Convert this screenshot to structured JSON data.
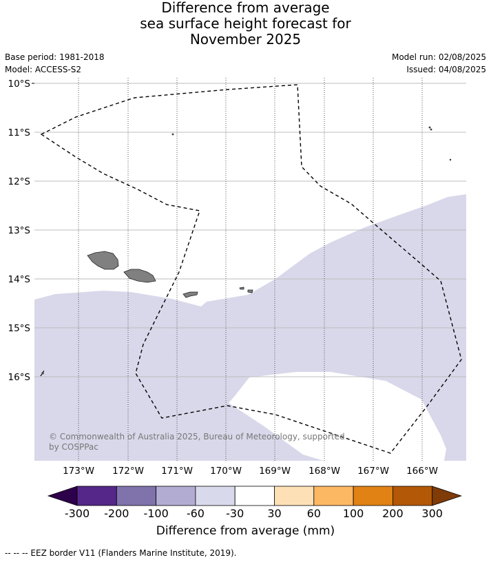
{
  "title": {
    "line1": "Difference from average",
    "line2": "sea surface height forecast for",
    "line3": "November 2025"
  },
  "meta": {
    "base_period": "Base period: 1981-2018",
    "model": "Model: ACCESS-S2",
    "model_run": "Model run: 02/08/2025",
    "issued": "Issued: 04/08/2025"
  },
  "map": {
    "lat_labels": [
      "10°S",
      "11°S",
      "12°S",
      "13°S",
      "14°S",
      "15°S",
      "16°S"
    ],
    "lon_labels": [
      "173°W",
      "172°W",
      "171°W",
      "170°W",
      "169°W",
      "168°W",
      "167°W",
      "166°W"
    ],
    "copyright_line1": "© Commonwealth of Australia 2025, Bureau of Meteorology, supported",
    "copyright_line2": "by COSPPac",
    "colors": {
      "land": "#808080",
      "anomaly_minus60_minus30": "#d8d8ea",
      "ocean_neutral": "#ffffff",
      "eez_border": "#000000"
    }
  },
  "colorbar": {
    "ticks": [
      "-300",
      "-200",
      "-100",
      "-60",
      "-30",
      "30",
      "60",
      "100",
      "200",
      "300"
    ],
    "colors": [
      "#2d004b",
      "#542788",
      "#8073ac",
      "#b2abd2",
      "#d8daeb",
      "#ffffff",
      "#fee0b6",
      "#fdb863",
      "#e08214",
      "#b35806",
      "#7f3b08"
    ],
    "label": "Difference from average (mm)"
  },
  "footnote": "--  --  -- EEZ border V11 (Flanders Marine Institute, 2019)."
}
